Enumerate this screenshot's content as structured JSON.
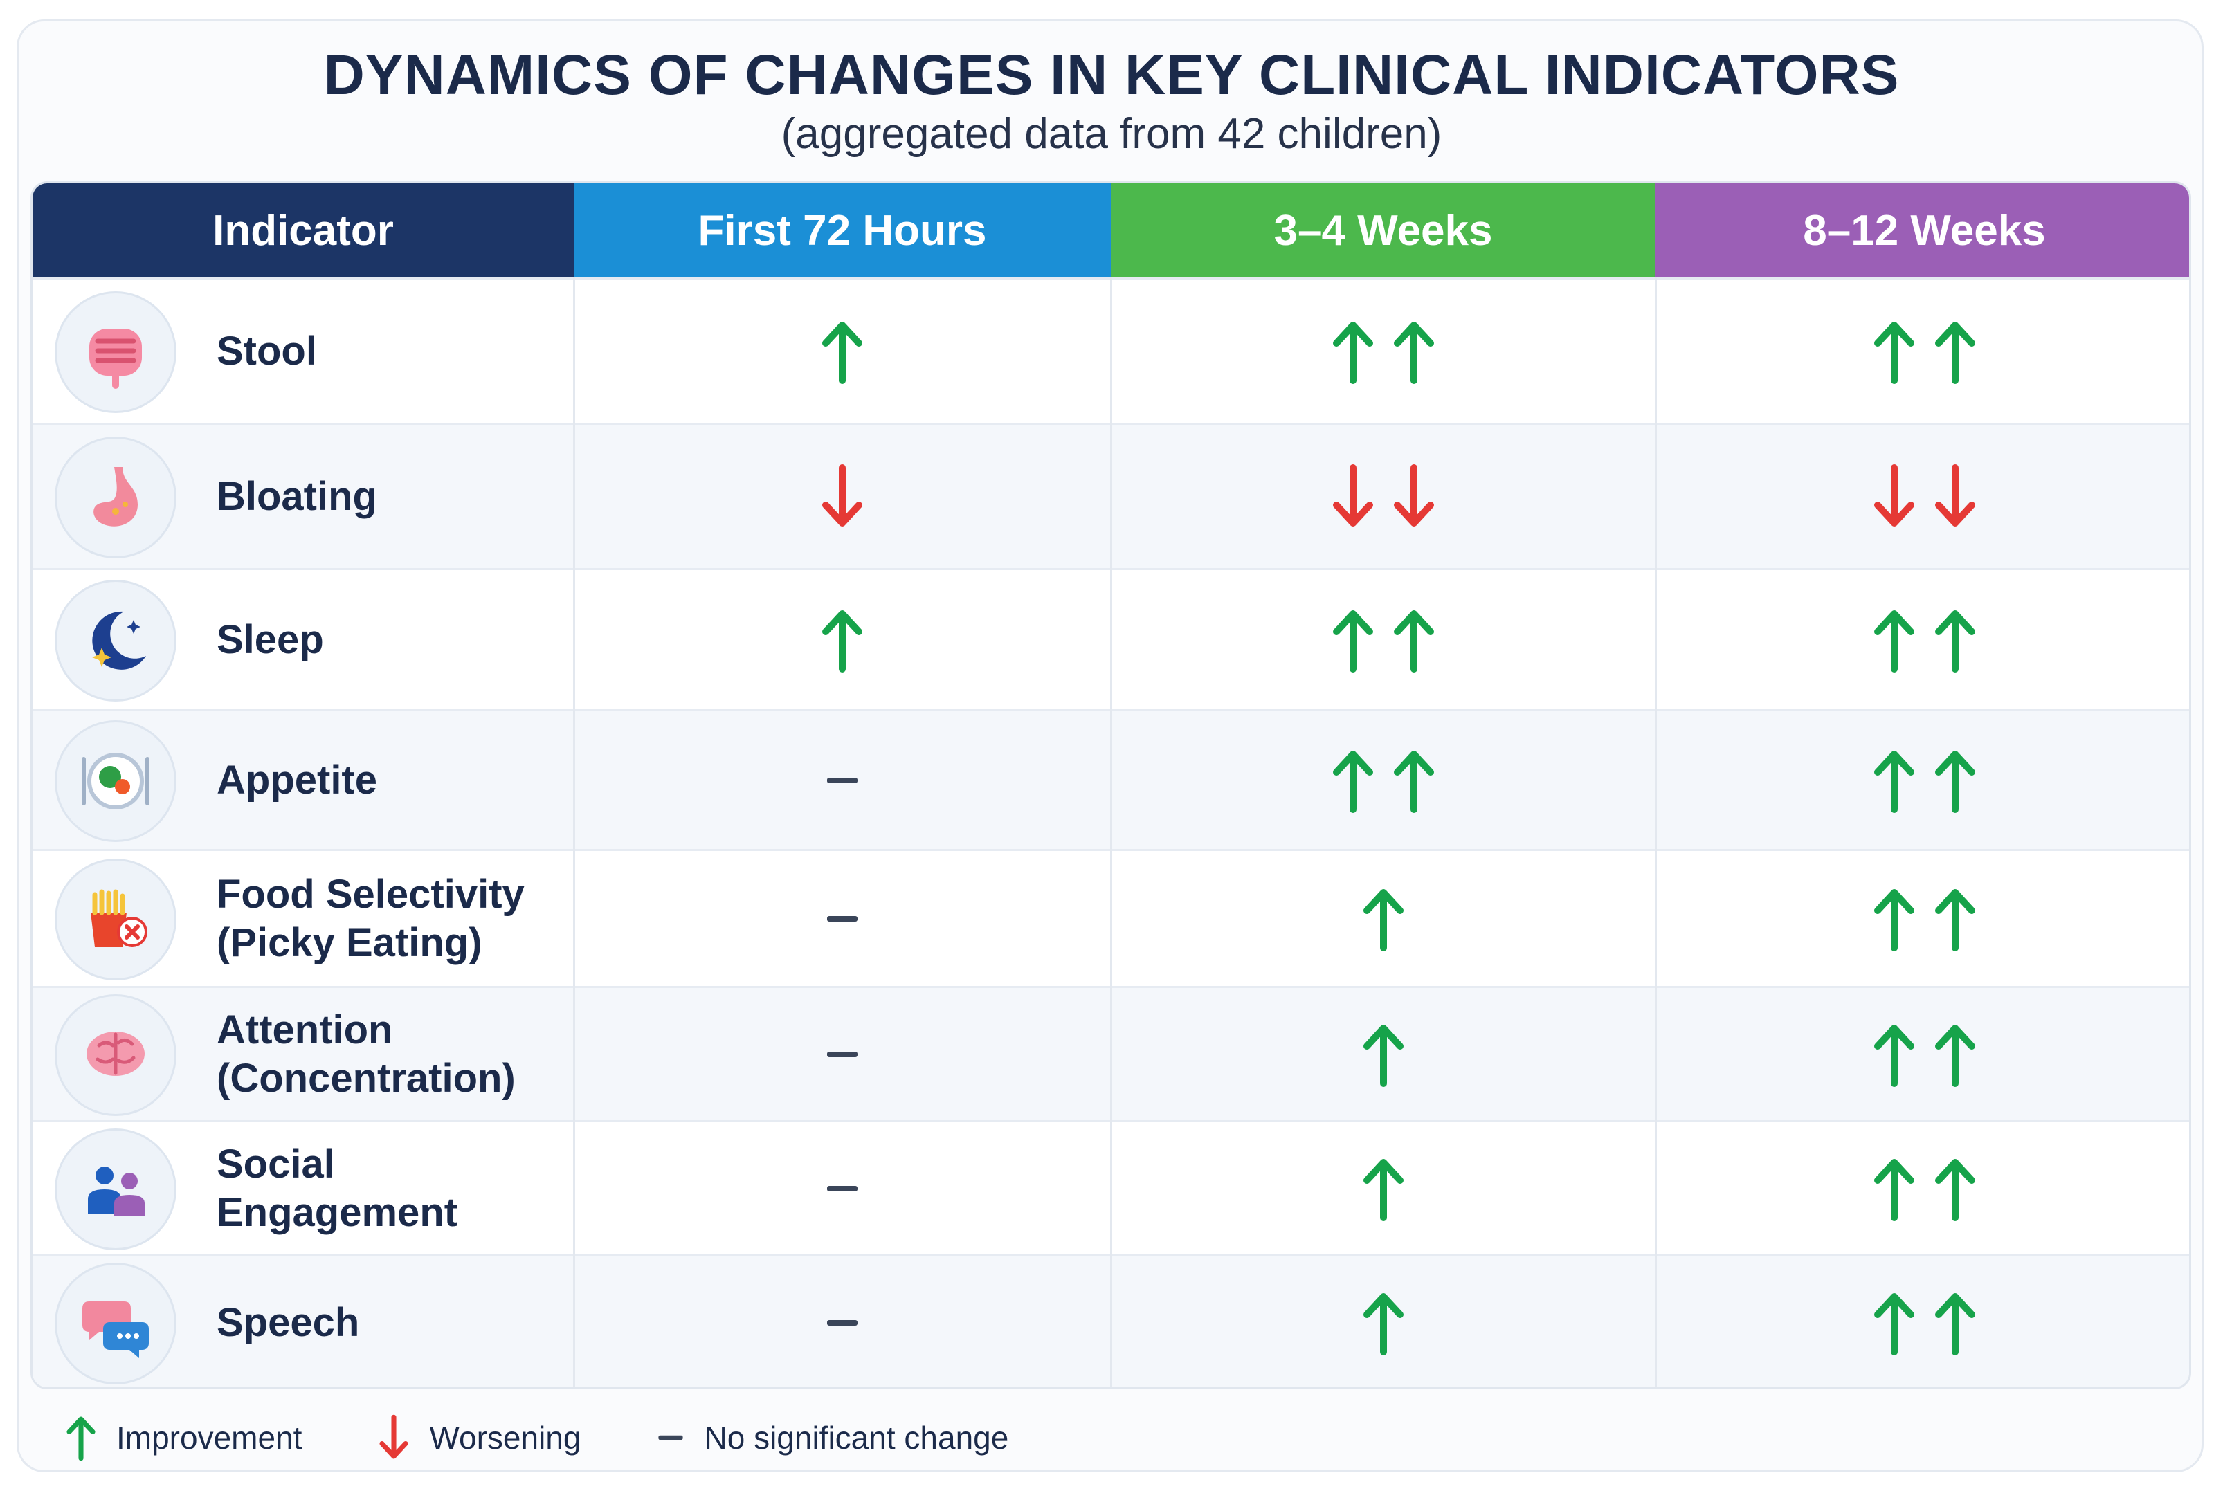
{
  "title": "DYNAMICS OF CHANGES IN KEY CLINICAL INDICATORS",
  "subtitle": "(aggregated data from 42 children)",
  "colors": {
    "improvement": "#16a34a",
    "worsening": "#e53935",
    "no_change": "#3a4559",
    "header_indicator": "#1c3566",
    "header_72h": "#1b8fd6",
    "header_3_4w": "#4cb84c",
    "header_8_12w": "#9b5fb6"
  },
  "chart_data": {
    "type": "table",
    "columns": [
      "Indicator",
      "First 72 Hours",
      "3–4 Weeks",
      "8–12 Weeks"
    ],
    "rows": [
      {
        "indicator": [
          "Stool"
        ],
        "icon": "intestine-icon",
        "values": [
          "up",
          "up2",
          "up2"
        ]
      },
      {
        "indicator": [
          "Bloating"
        ],
        "icon": "stomach-icon",
        "values": [
          "down",
          "down2",
          "down2"
        ]
      },
      {
        "indicator": [
          "Sleep"
        ],
        "icon": "moon-icon",
        "values": [
          "up",
          "up2",
          "up2"
        ]
      },
      {
        "indicator": [
          "Appetite"
        ],
        "icon": "plate-icon",
        "values": [
          "none",
          "up2",
          "up2"
        ]
      },
      {
        "indicator": [
          "Food Selectivity",
          "(Picky Eating)"
        ],
        "icon": "fries-reject-icon",
        "values": [
          "none",
          "up",
          "up2"
        ]
      },
      {
        "indicator": [
          "Attention",
          "(Concentration)"
        ],
        "icon": "brain-icon",
        "values": [
          "none",
          "up",
          "up2"
        ]
      },
      {
        "indicator": [
          "Social",
          "Engagement"
        ],
        "icon": "people-icon",
        "values": [
          "none",
          "up",
          "up2"
        ]
      },
      {
        "indicator": [
          "Speech"
        ],
        "icon": "speech-bubbles-icon",
        "values": [
          "none",
          "up",
          "up2"
        ]
      }
    ],
    "legend": [
      {
        "symbol": "up",
        "label": "Improvement"
      },
      {
        "symbol": "down",
        "label": "Worsening"
      },
      {
        "symbol": "none",
        "label": "No significant change"
      }
    ]
  }
}
